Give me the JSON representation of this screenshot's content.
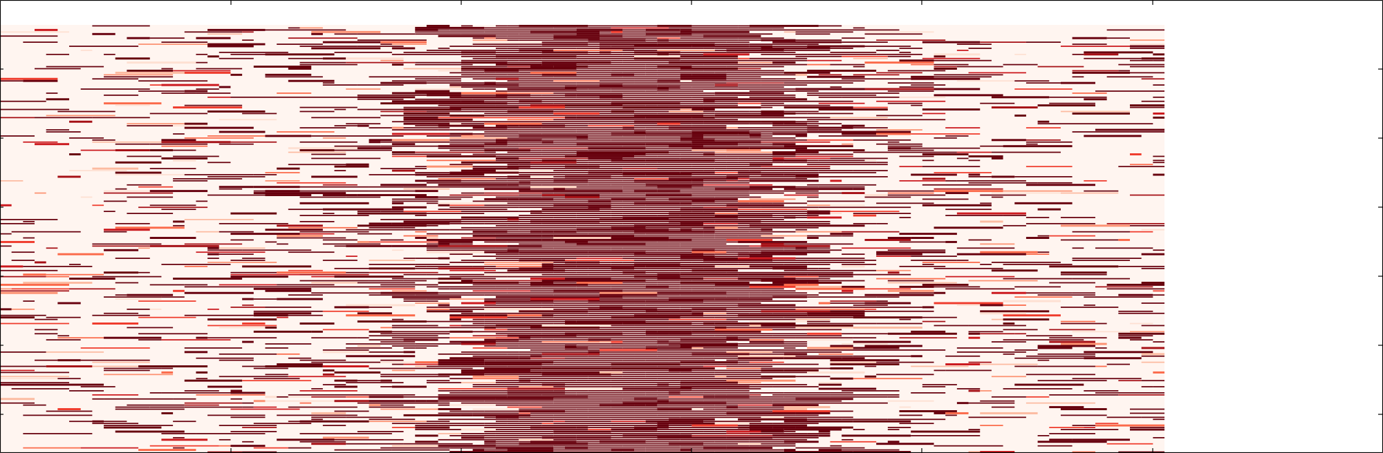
{
  "chart_data": {
    "type": "heatmap",
    "title": "",
    "xlabel": "",
    "ylabel": "",
    "colormap": "Reds",
    "colors": {
      "background": "#fff5f0",
      "max": "#67000d",
      "intermediate": [
        "#fee0d2",
        "#fcbba1",
        "#fc9272",
        "#fb6a4a",
        "#ef3b2c",
        "#cb181d",
        "#a50f15"
      ],
      "frame": "#000000"
    },
    "column_density_profile": [
      0.1,
      0.12,
      0.13,
      0.15,
      0.18,
      0.24,
      0.33,
      0.5,
      0.8,
      0.95,
      0.96,
      0.94,
      0.78,
      0.5,
      0.32,
      0.22,
      0.16,
      0.14,
      0.13,
      0.12
    ],
    "grid": false,
    "tick_labels": false
  }
}
